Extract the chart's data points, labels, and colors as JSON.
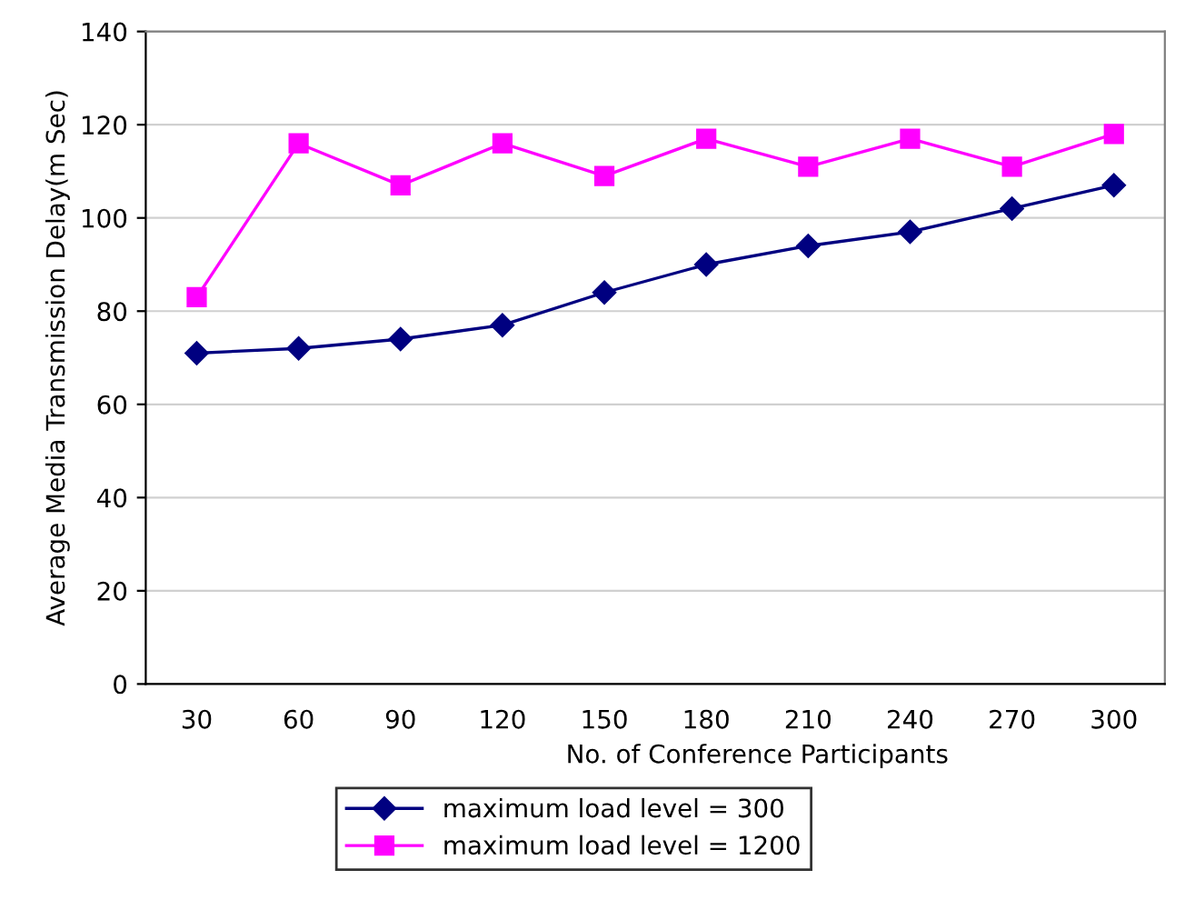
{
  "chart_data": {
    "type": "line",
    "xlabel": "No. of Conference Participants",
    "ylabel": "Average Media Transmission Delay(m Sec)",
    "categories": [
      "30",
      "60",
      "90",
      "120",
      "150",
      "180",
      "210",
      "240",
      "270",
      "300"
    ],
    "series": [
      {
        "name": "maximum load level = 300",
        "color": "#000080",
        "marker": "diamond",
        "values": [
          71,
          72,
          74,
          77,
          84,
          90,
          94,
          97,
          102,
          107
        ]
      },
      {
        "name": "maximum load level = 1200",
        "color": "#ff00ff",
        "marker": "square",
        "values": [
          83,
          116,
          107,
          116,
          109,
          117,
          111,
          117,
          111,
          118
        ]
      }
    ],
    "ylim": [
      0,
      140
    ],
    "yticks": [
      0,
      20,
      40,
      60,
      80,
      100,
      120,
      140
    ],
    "grid": "y",
    "legend": "bottom",
    "line_style": "solid"
  }
}
